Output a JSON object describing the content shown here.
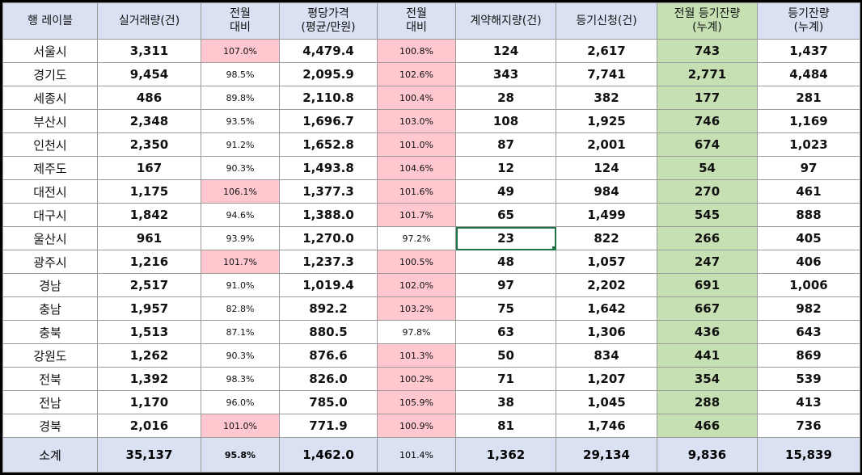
{
  "headers": [
    [
      "행 레이블"
    ],
    [
      "실거래량(건)"
    ],
    [
      "전월",
      "대비"
    ],
    [
      "평당가격",
      "(평균/만원)"
    ],
    [
      "전월",
      "대비"
    ],
    [
      "계약해지량(건)"
    ],
    [
      "등기신청(건)"
    ],
    [
      "전월 등기잔량",
      "(누계)"
    ],
    [
      "등기잔량",
      "(누계)"
    ]
  ],
  "rows": [
    [
      "서울시",
      "3,311",
      "107.0%",
      "4,479.4",
      "100.8%",
      "124",
      "2,617",
      "743",
      "1,437"
    ],
    [
      "경기도",
      "9,454",
      "98.5%",
      "2,095.9",
      "102.6%",
      "343",
      "7,741",
      "2,771",
      "4,484"
    ],
    [
      "세종시",
      "486",
      "89.8%",
      "2,110.8",
      "100.4%",
      "28",
      "382",
      "177",
      "281"
    ],
    [
      "부산시",
      "2,348",
      "93.5%",
      "1,696.7",
      "103.0%",
      "108",
      "1,925",
      "746",
      "1,169"
    ],
    [
      "인천시",
      "2,350",
      "91.2%",
      "1,652.8",
      "101.0%",
      "87",
      "2,001",
      "674",
      "1,023"
    ],
    [
      "제주도",
      "167",
      "90.3%",
      "1,493.8",
      "104.6%",
      "12",
      "124",
      "54",
      "97"
    ],
    [
      "대전시",
      "1,175",
      "106.1%",
      "1,377.3",
      "101.6%",
      "49",
      "984",
      "270",
      "461"
    ],
    [
      "대구시",
      "1,842",
      "94.6%",
      "1,388.0",
      "101.7%",
      "65",
      "1,499",
      "545",
      "888"
    ],
    [
      "울산시",
      "961",
      "93.9%",
      "1,270.0",
      "97.2%",
      "23",
      "822",
      "266",
      "405"
    ],
    [
      "광주시",
      "1,216",
      "101.7%",
      "1,237.3",
      "100.5%",
      "48",
      "1,057",
      "247",
      "406"
    ],
    [
      "경남",
      "2,517",
      "91.0%",
      "1,019.4",
      "102.0%",
      "97",
      "2,202",
      "691",
      "1,006"
    ],
    [
      "충남",
      "1,957",
      "82.8%",
      "892.2",
      "103.2%",
      "75",
      "1,642",
      "667",
      "982"
    ],
    [
      "충북",
      "1,513",
      "87.1%",
      "880.5",
      "97.8%",
      "63",
      "1,306",
      "436",
      "643"
    ],
    [
      "강원도",
      "1,262",
      "90.3%",
      "876.6",
      "101.3%",
      "50",
      "834",
      "441",
      "869"
    ],
    [
      "전북",
      "1,392",
      "98.3%",
      "826.0",
      "100.2%",
      "71",
      "1,207",
      "354",
      "539"
    ],
    [
      "전남",
      "1,170",
      "96.0%",
      "785.0",
      "105.9%",
      "38",
      "1,045",
      "288",
      "413"
    ],
    [
      "경북",
      "2,016",
      "101.0%",
      "771.9",
      "100.9%",
      "81",
      "1,746",
      "466",
      "736"
    ]
  ],
  "pink_cells": [
    [
      0,
      2
    ],
    [
      0,
      4
    ],
    [
      1,
      4
    ],
    [
      2,
      4
    ],
    [
      3,
      4
    ],
    [
      4,
      4
    ],
    [
      5,
      4
    ],
    [
      6,
      2
    ],
    [
      6,
      4
    ],
    [
      7,
      4
    ],
    [
      9,
      2
    ],
    [
      9,
      4
    ],
    [
      10,
      4
    ],
    [
      11,
      4
    ],
    [
      13,
      4
    ],
    [
      14,
      4
    ],
    [
      15,
      4
    ],
    [
      16,
      2
    ],
    [
      16,
      4
    ]
  ],
  "selected_cell": [
    8,
    5
  ],
  "total": [
    "소계",
    "35,137",
    "95.8%",
    "1,462.0",
    "101.4%",
    "1,362",
    "29,134",
    "9,836",
    "15,839"
  ],
  "colors": {
    "header_bg": "#d9e1f2",
    "highlight_green": "#c6e0b4",
    "pink": "#ffc7ce",
    "selection": "#1e7145"
  }
}
